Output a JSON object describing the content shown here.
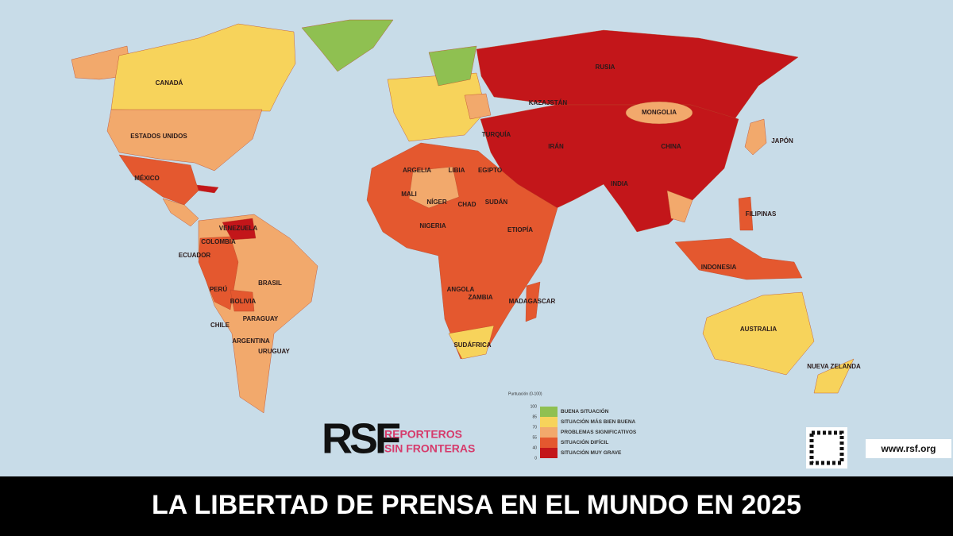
{
  "title": "LA LIBERTAD DE PRENSA EN EL MUNDO EN 2025",
  "country_labels": [
    "CANADÁ",
    "ESTADOS UNIDOS",
    "RUSIA",
    "CHINA",
    "BRASIL",
    "AUSTRALIA",
    "MÉXICO",
    "INDIA",
    "ARGENTINA",
    "PERÚ",
    "COLOMBIA",
    "VENEZUELA",
    "BOLIVIA",
    "CHILE",
    "URUGUAY",
    "PARAGUAY",
    "ECUADOR",
    "MONGOLIA",
    "KAZAJSTÁN",
    "ARGELIA",
    "LIBIA",
    "EGIPTO",
    "SUDÁN",
    "ETIOPÍA",
    "NÍGER",
    "CHAD",
    "MALI",
    "NIGERIA",
    "ANGOLA",
    "ZAMBIA",
    "SUDÁFRICA",
    "MADAGASCAR",
    "INDONESIA",
    "FILIPINAS",
    "JAPÓN",
    "TURQUÍA",
    "IRÁN",
    "NUEVA ZELANDA"
  ],
  "legend": {
    "title": "Puntuación (0-100)",
    "ticks": [
      "100",
      "85",
      "70",
      "55",
      "40",
      "0"
    ],
    "items": [
      {
        "label": "BUENA SITUACIÓN",
        "color": "#8fc051"
      },
      {
        "label": "SITUACIÓN MÁS BIEN BUENA",
        "color": "#f7d35b"
      },
      {
        "label": "PROBLEMAS SIGNIFICATIVOS",
        "color": "#f2a96c"
      },
      {
        "label": "SITUACIÓN DIFÍCIL",
        "color": "#e4582f"
      },
      {
        "label": "SITUACIÓN MUY GRAVE",
        "color": "#c3161a"
      }
    ]
  },
  "logo": {
    "mark": "RSF",
    "name": [
      "REPORTEROS",
      "SIN FRONTERAS"
    ]
  },
  "url": "www.rsf.org"
}
